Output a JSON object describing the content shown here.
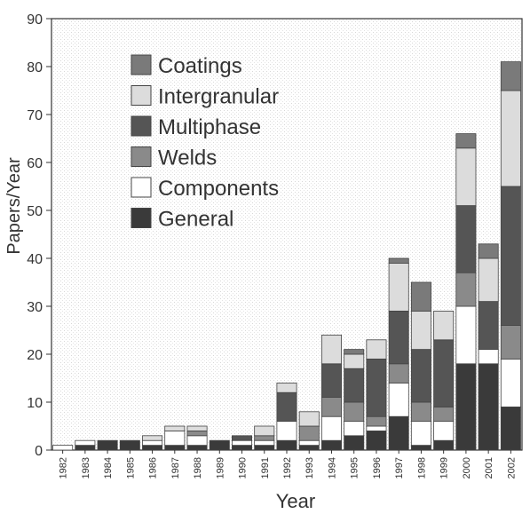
{
  "chart_data": {
    "type": "bar",
    "stacked": true,
    "title": "",
    "xlabel": "Year",
    "ylabel": "Papers/Year",
    "ylim": [
      0,
      90
    ],
    "yticks": [
      0,
      10,
      20,
      30,
      40,
      50,
      60,
      70,
      80,
      90
    ],
    "grid": false,
    "legend_position": "top-left",
    "categories": [
      "1982",
      "1983",
      "1984",
      "1985",
      "1986",
      "1987",
      "1988",
      "1989",
      "1990",
      "1991",
      "1992",
      "1993",
      "1994",
      "1995",
      "1996",
      "1997",
      "1998",
      "1999",
      "2000",
      "2001",
      "2002"
    ],
    "series": [
      {
        "name": "General",
        "color": "#3a3a3a",
        "values": [
          0,
          1,
          2,
          2,
          1,
          1,
          1,
          2,
          1,
          1,
          2,
          1,
          2,
          3,
          4,
          7,
          1,
          2,
          18,
          18,
          9
        ]
      },
      {
        "name": "Components",
        "color": "#ffffff",
        "values": [
          1,
          1,
          0,
          0,
          1,
          3,
          2,
          0,
          1,
          1,
          4,
          1,
          5,
          3,
          1,
          7,
          5,
          4,
          12,
          3,
          10
        ]
      },
      {
        "name": "Welds",
        "color": "#8a8a8a",
        "values": [
          0,
          0,
          0,
          0,
          0,
          0,
          1,
          0,
          0,
          1,
          0,
          3,
          4,
          4,
          2,
          4,
          4,
          3,
          7,
          0,
          7
        ]
      },
      {
        "name": "Multiphase",
        "color": "#555555",
        "values": [
          0,
          0,
          0,
          0,
          0,
          0,
          0,
          0,
          1,
          0,
          6,
          0,
          7,
          7,
          12,
          11,
          11,
          14,
          14,
          10,
          29
        ]
      },
      {
        "name": "Intergranular",
        "color": "#dcdcdc",
        "values": [
          0,
          0,
          0,
          0,
          1,
          1,
          1,
          0,
          0,
          2,
          2,
          3,
          6,
          3,
          4,
          10,
          8,
          6,
          12,
          9,
          20
        ]
      },
      {
        "name": "Coatings",
        "color": "#7a7a7a",
        "values": [
          0,
          0,
          0,
          0,
          0,
          0,
          0,
          0,
          0,
          0,
          0,
          0,
          0,
          1,
          0,
          1,
          6,
          0,
          3,
          3,
          6
        ]
      }
    ],
    "legend_order": [
      "Coatings",
      "Intergranular",
      "Multiphase",
      "Welds",
      "Components",
      "General"
    ]
  }
}
